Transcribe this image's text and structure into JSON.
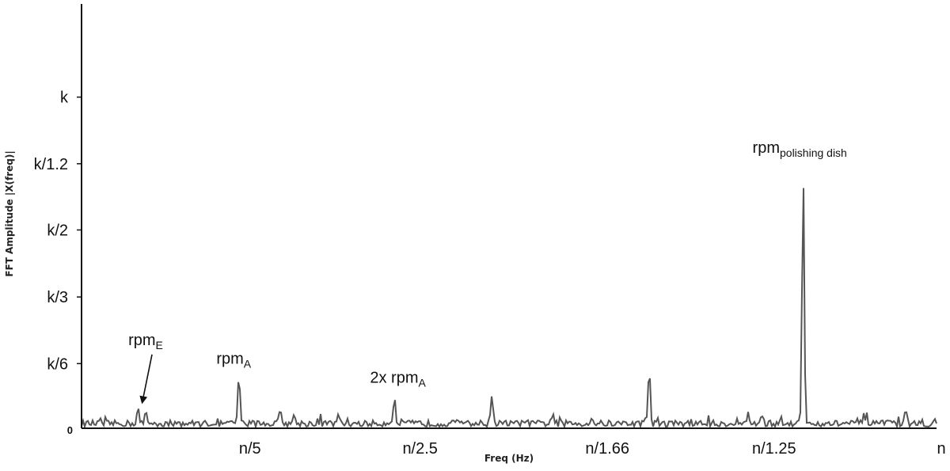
{
  "chart_data": {
    "type": "line",
    "title": "",
    "xlabel": "Freq (Hz)",
    "ylabel": "FFT Amplitude |X(freq)|",
    "grid": false,
    "legend": "none",
    "xlim": [
      0,
      1
    ],
    "ylim": [
      0,
      1
    ],
    "x_ticks": [
      {
        "value": 0.197,
        "label": "n/5"
      },
      {
        "value": 0.396,
        "label": "n/2.5"
      },
      {
        "value": 0.615,
        "label": "n/1.66"
      },
      {
        "value": 0.81,
        "label": "n/1.25"
      },
      {
        "value": 1.0,
        "label": "n"
      }
    ],
    "y_ticks": [
      {
        "value": 0.0,
        "label": "0"
      },
      {
        "value": 0.163,
        "label": "k/6"
      },
      {
        "value": 0.331,
        "label": "k/3"
      },
      {
        "value": 0.5,
        "label": "k/2"
      },
      {
        "value": 0.667,
        "label": "k/1.2"
      },
      {
        "value": 0.835,
        "label": "k"
      }
    ],
    "baseline": 0.012,
    "peaks": [
      {
        "x": 0.066,
        "y": 0.05
      },
      {
        "x": 0.076,
        "y": 0.035
      },
      {
        "x": 0.184,
        "y": 0.135
      },
      {
        "x": 0.232,
        "y": 0.038
      },
      {
        "x": 0.249,
        "y": 0.032
      },
      {
        "x": 0.3,
        "y": 0.03
      },
      {
        "x": 0.366,
        "y": 0.085
      },
      {
        "x": 0.48,
        "y": 0.09
      },
      {
        "x": 0.55,
        "y": 0.03
      },
      {
        "x": 0.597,
        "y": 0.027
      },
      {
        "x": 0.66,
        "y": 0.03
      },
      {
        "x": 0.664,
        "y": 0.15
      },
      {
        "x": 0.78,
        "y": 0.035
      },
      {
        "x": 0.796,
        "y": 0.035
      },
      {
        "x": 0.844,
        "y": 0.64
      },
      {
        "x": 0.915,
        "y": 0.038
      },
      {
        "x": 0.964,
        "y": 0.04
      }
    ],
    "annotations": [
      {
        "x": 0.075,
        "y": 0.21,
        "main": "rpm",
        "sub": "E",
        "arrow_to": {
          "x": 0.071,
          "y": 0.065
        }
      },
      {
        "x": 0.178,
        "y": 0.163,
        "main": "rpm",
        "sub": "A"
      },
      {
        "x": 0.37,
        "y": 0.115,
        "main": "2x rpm",
        "sub": "A"
      },
      {
        "x": 0.84,
        "y": 0.695,
        "main": "rpm",
        "sub": "polishing dish"
      }
    ]
  }
}
